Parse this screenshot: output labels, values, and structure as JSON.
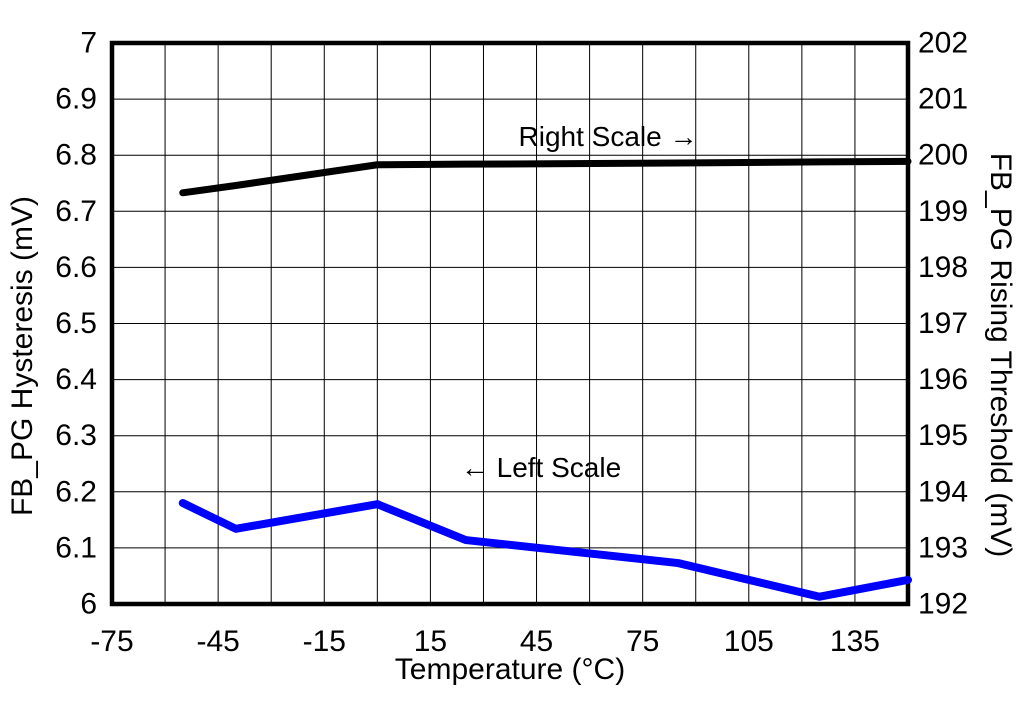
{
  "chart_data": {
    "type": "line",
    "title": "",
    "x_label": "Temperature (°C)",
    "x_range": [
      -75,
      150
    ],
    "x_grid_step": 15,
    "x_tick_values": [
      -75,
      -45,
      -15,
      15,
      45,
      75,
      105,
      135
    ],
    "x_tick_labels": [
      "-75",
      "-45",
      "-15",
      "15",
      "45",
      "75",
      "105",
      "135"
    ],
    "left_axis": {
      "label": "FB_PG Hysteresis (mV)",
      "range": [
        6,
        7
      ],
      "grid_step": 0.1,
      "tick_labels": [
        "7",
        "6.9",
        "6.8",
        "6.7",
        "6.6",
        "6.5",
        "6.4",
        "6.3",
        "6.2",
        "6.1",
        "6"
      ]
    },
    "right_axis": {
      "label": "FB_PG Rising Threshold (mV)",
      "range": [
        192,
        202
      ],
      "grid_step": 1,
      "tick_labels": [
        "202",
        "201",
        "200",
        "199",
        "198",
        "197",
        "196",
        "195",
        "194",
        "193",
        "192"
      ]
    },
    "grid": true,
    "legend": "none",
    "x": [
      -55,
      -40,
      0,
      25,
      85,
      125,
      150
    ],
    "series": [
      {
        "name": "FB_PG Rising Threshold",
        "axis": "right",
        "color": "#000000",
        "stroke_width": 7,
        "values": [
          199.33,
          199.46,
          199.83,
          199.84,
          199.86,
          199.88,
          199.89
        ]
      },
      {
        "name": "FB_PG Hysteresis",
        "axis": "left",
        "color": "#0000ff",
        "stroke_width": 8,
        "values": [
          6.18,
          6.134,
          6.178,
          6.114,
          6.073,
          6.013,
          6.043
        ]
      }
    ],
    "annotations": [
      {
        "text": "Right Scale →"
      },
      {
        "text": "← Left Scale"
      }
    ]
  }
}
